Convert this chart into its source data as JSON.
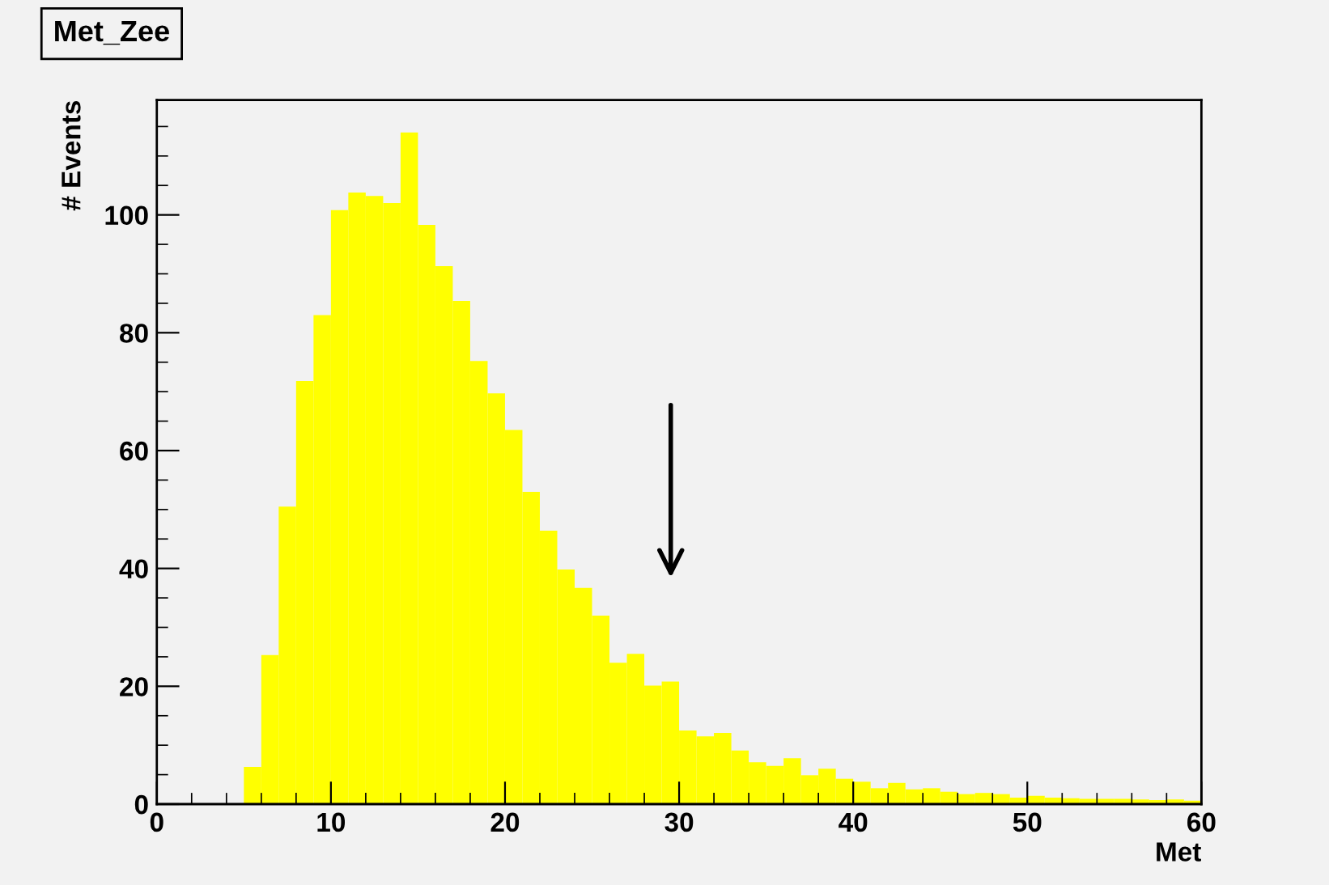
{
  "chart_data": {
    "type": "histogram",
    "title": "Met_Zee",
    "xlabel": "Met",
    "ylabel": "# Events",
    "bins": [
      0,
      1,
      2,
      3,
      4,
      5,
      6,
      7,
      8,
      9,
      10,
      11,
      12,
      13,
      14,
      15,
      16,
      17,
      18,
      19,
      20,
      21,
      22,
      23,
      24,
      25,
      26,
      27,
      28,
      29,
      30,
      31,
      32,
      33,
      34,
      35,
      36,
      37,
      38,
      39,
      40,
      41,
      42,
      43,
      44,
      45,
      46,
      47,
      48,
      49,
      50,
      51,
      52,
      53,
      54,
      55,
      56,
      57,
      58,
      59,
      60
    ],
    "values": [
      0,
      0,
      0,
      0,
      0,
      6.3,
      25.3,
      50.5,
      71.8,
      83,
      100.8,
      103.8,
      103.2,
      102,
      114,
      98.3,
      91.3,
      85.4,
      75.2,
      69.7,
      63.5,
      53,
      46.4,
      39.8,
      36.7,
      32,
      24,
      25.5,
      20.1,
      20.8,
      12.5,
      11.5,
      12.1,
      9.1,
      7.1,
      6.5,
      7.8,
      4.9,
      6,
      4.3,
      3.8,
      2.7,
      3.6,
      2.5,
      2.7,
      2.1,
      1.7,
      1.9,
      1.7,
      1.1,
      1.4,
      1.1,
      1,
      0.9,
      0.9,
      0.9,
      0.8,
      0.7,
      0.8,
      0.6
    ],
    "color": "#ffff00",
    "xlim": [
      0,
      60
    ],
    "xticks": [
      0,
      10,
      20,
      30,
      40,
      50,
      60
    ],
    "ylim": [
      0,
      119.5
    ],
    "yticks": [
      0,
      20,
      40,
      60,
      80,
      100
    ],
    "grid": false,
    "legend": false
  }
}
